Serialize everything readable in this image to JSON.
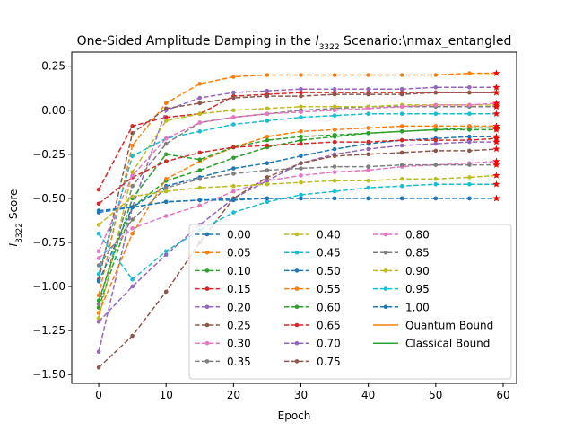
{
  "chart_data": {
    "type": "line",
    "title": {
      "prefix": "One-Sided Amplitude Damping in the ",
      "sym": "I",
      "sub": "3322",
      "suffix": " Scenario:\\nmax_entangled"
    },
    "xlabel": "Epoch",
    "ylabel": {
      "sym": "I",
      "sub": "3322",
      "suffix": " Score"
    },
    "xlim": [
      -4,
      62
    ],
    "ylim": [
      -1.55,
      0.33
    ],
    "xticks": [
      0,
      10,
      20,
      30,
      40,
      50,
      60
    ],
    "yticks": [
      -1.5,
      -1.25,
      -1.0,
      -0.75,
      -0.5,
      -0.25,
      0.0,
      0.25
    ],
    "ytick_labels": [
      "−1.50",
      "−1.25",
      "−1.00",
      "−0.75",
      "−0.50",
      "−0.25",
      "0.00",
      "0.25"
    ],
    "x": [
      0,
      5,
      10,
      15,
      20,
      25,
      30,
      35,
      40,
      45,
      50,
      55,
      59
    ],
    "legend": {
      "position": "lower right",
      "ncol": 3
    },
    "series": [
      {
        "name": "0.00",
        "color": "#1f77b4",
        "values": [
          -0.58,
          -0.55,
          -0.52,
          -0.51,
          -0.5,
          -0.5,
          -0.5,
          -0.5,
          -0.5,
          -0.5,
          -0.5,
          -0.5,
          -0.5
        ]
      },
      {
        "name": "0.05",
        "color": "#ff7f0e",
        "values": [
          -1.05,
          -0.2,
          0.04,
          0.15,
          0.19,
          0.2,
          0.2,
          0.2,
          0.2,
          0.2,
          0.2,
          0.21,
          0.21
        ]
      },
      {
        "name": "0.10",
        "color": "#2ca02c",
        "values": [
          -1.12,
          -0.55,
          -0.4,
          -0.34,
          -0.27,
          -0.21,
          -0.17,
          -0.15,
          -0.13,
          -0.12,
          -0.11,
          -0.1,
          -0.1
        ]
      },
      {
        "name": "0.15",
        "color": "#d62728",
        "values": [
          -0.45,
          -0.09,
          -0.04,
          -0.02,
          0.08,
          0.09,
          0.1,
          0.1,
          0.1,
          0.1,
          0.1,
          0.1,
          0.1
        ]
      },
      {
        "name": "0.20",
        "color": "#9467bd",
        "values": [
          -1.37,
          -0.55,
          0.0,
          0.07,
          0.1,
          0.11,
          0.12,
          0.12,
          0.12,
          0.12,
          0.13,
          0.13,
          0.13
        ]
      },
      {
        "name": "0.25",
        "color": "#8c564b",
        "values": [
          -0.96,
          -0.13,
          0.01,
          0.04,
          0.07,
          0.08,
          0.08,
          0.09,
          0.09,
          0.09,
          0.1,
          0.1,
          0.1
        ]
      },
      {
        "name": "0.30",
        "color": "#e377c2",
        "values": [
          -0.84,
          -0.67,
          -0.6,
          -0.54,
          -0.46,
          -0.4,
          -0.37,
          -0.35,
          -0.34,
          -0.32,
          -0.31,
          -0.3,
          -0.29
        ]
      },
      {
        "name": "0.35",
        "color": "#7f7f7f",
        "values": [
          -1.1,
          -0.43,
          -0.19,
          -0.07,
          -0.04,
          -0.02,
          0.0,
          0.01,
          0.02,
          0.02,
          0.02,
          0.02,
          0.02
        ]
      },
      {
        "name": "0.40",
        "color": "#bcbd22",
        "values": [
          -1.18,
          -0.35,
          -0.06,
          -0.02,
          0.0,
          0.01,
          0.02,
          0.02,
          0.02,
          0.03,
          0.03,
          0.03,
          0.03
        ]
      },
      {
        "name": "0.45",
        "color": "#17becf",
        "values": [
          -0.93,
          -0.26,
          -0.16,
          -0.12,
          -0.08,
          -0.06,
          -0.04,
          -0.03,
          -0.02,
          -0.02,
          -0.02,
          -0.02,
          -0.02
        ]
      },
      {
        "name": "0.50",
        "color": "#1f77b4",
        "values": [
          -0.97,
          -0.55,
          -0.43,
          -0.38,
          -0.33,
          -0.3,
          -0.26,
          -0.22,
          -0.19,
          -0.17,
          -0.16,
          -0.15,
          -0.15
        ]
      },
      {
        "name": "0.55",
        "color": "#ff7f0e",
        "values": [
          -1.15,
          -0.7,
          -0.39,
          -0.29,
          -0.21,
          -0.15,
          -0.12,
          -0.11,
          -0.1,
          -0.09,
          -0.09,
          -0.09,
          -0.09
        ]
      },
      {
        "name": "0.60",
        "color": "#2ca02c",
        "values": [
          -1.08,
          -0.5,
          -0.25,
          -0.28,
          -0.21,
          -0.17,
          -0.15,
          -0.14,
          -0.13,
          -0.12,
          -0.11,
          -0.11,
          -0.11
        ]
      },
      {
        "name": "0.65",
        "color": "#d62728",
        "values": [
          -0.53,
          -0.38,
          -0.29,
          -0.24,
          -0.21,
          -0.2,
          -0.19,
          -0.18,
          -0.18,
          -0.17,
          -0.17,
          -0.17,
          -0.16
        ]
      },
      {
        "name": "0.70",
        "color": "#9467bd",
        "values": [
          -1.2,
          -1.0,
          -0.82,
          -0.65,
          -0.5,
          -0.4,
          -0.3,
          -0.25,
          -0.22,
          -0.2,
          -0.19,
          -0.18,
          -0.18
        ]
      },
      {
        "name": "0.75",
        "color": "#8c564b",
        "values": [
          -1.46,
          -1.28,
          -1.03,
          -0.75,
          -0.5,
          -0.38,
          -0.3,
          -0.26,
          -0.25,
          -0.24,
          -0.23,
          -0.23,
          -0.22
        ]
      },
      {
        "name": "0.80",
        "color": "#e377c2",
        "values": [
          -0.8,
          -0.37,
          -0.16,
          -0.07,
          -0.04,
          -0.02,
          -0.01,
          0.0,
          0.01,
          0.02,
          0.03,
          0.03,
          0.04
        ]
      },
      {
        "name": "0.85",
        "color": "#7f7f7f",
        "values": [
          -0.88,
          -0.62,
          -0.44,
          -0.39,
          -0.36,
          -0.34,
          -0.33,
          -0.32,
          -0.32,
          -0.31,
          -0.31,
          -0.31,
          -0.31
        ]
      },
      {
        "name": "0.90",
        "color": "#bcbd22",
        "values": [
          -0.65,
          -0.49,
          -0.46,
          -0.44,
          -0.43,
          -0.42,
          -0.41,
          -0.4,
          -0.4,
          -0.39,
          -0.39,
          -0.38,
          -0.37
        ]
      },
      {
        "name": "0.95",
        "color": "#17becf",
        "values": [
          -0.7,
          -0.96,
          -0.8,
          -0.68,
          -0.58,
          -0.52,
          -0.48,
          -0.46,
          -0.44,
          -0.43,
          -0.42,
          -0.42,
          -0.42
        ]
      },
      {
        "name": "1.00",
        "color": "#1f77b4",
        "values": [
          -0.57,
          -0.55,
          -0.52,
          -0.51,
          -0.51,
          -0.5,
          -0.5,
          -0.5,
          -0.5,
          -0.5,
          -0.5,
          -0.5,
          -0.5
        ]
      }
    ],
    "bounds": [
      {
        "name": "Quantum Bound",
        "color": "#ff7f0e"
      },
      {
        "name": "Classical Bound",
        "color": "#2ca02c"
      }
    ],
    "end_marker_color": "#ff0000"
  }
}
